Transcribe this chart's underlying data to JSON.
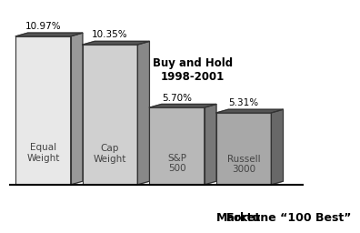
{
  "categories": [
    "Equal\nWeight",
    "Cap\nWeight",
    "S&P\n500",
    "Russell\n3000"
  ],
  "values": [
    10.97,
    10.35,
    5.7,
    5.31
  ],
  "bar_face_colors": [
    "#e8e8e8",
    "#d0d0d0",
    "#b8b8b8",
    "#a8a8a8"
  ],
  "bar_top_colors": [
    "#555555",
    "#555555",
    "#555555",
    "#555555"
  ],
  "bar_side_colors": [
    "#999999",
    "#888888",
    "#787878",
    "#686868"
  ],
  "bar_edge_color": "#333333",
  "value_labels": [
    "10.97%",
    "10.35%",
    "5.70%",
    "5.31%"
  ],
  "group_labels": [
    "Fortune “100 Best”",
    "Market"
  ],
  "annotation_text": "Buy and Hold\n1998-2001",
  "ylim": [
    0,
    13.0
  ],
  "background_color": "#ffffff",
  "label_fontsize": 7.5,
  "value_fontsize": 7.5,
  "group_label_fontsize": 9,
  "annotation_fontsize": 8.5,
  "depth": 0.18,
  "bar_positions": [
    0,
    1,
    2,
    3
  ],
  "bar_width": 0.82
}
